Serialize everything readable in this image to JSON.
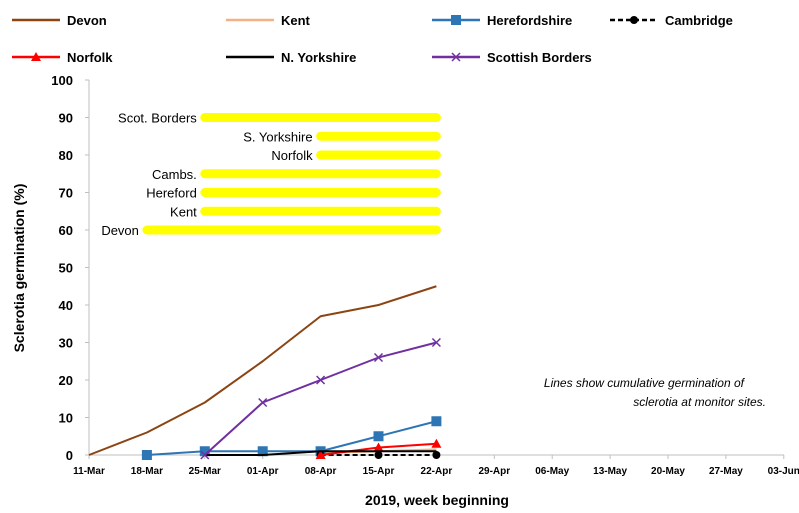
{
  "chart_data": {
    "type": "line",
    "title": "",
    "xlabel": "2019, week beginning",
    "ylabel": "Sclerotia germination (%)",
    "ylim": [
      0,
      100
    ],
    "y_ticks": [
      0,
      10,
      20,
      30,
      40,
      50,
      60,
      70,
      80,
      90,
      100
    ],
    "categories": [
      "11-Mar",
      "18-Mar",
      "25-Mar",
      "01-Apr",
      "08-Apr",
      "15-Apr",
      "22-Apr",
      "29-Apr",
      "06-May",
      "13-May",
      "20-May",
      "27-May",
      "03-Jun"
    ],
    "grid": false,
    "legend_position": "top",
    "series": [
      {
        "name": "Devon",
        "color": "#8B4513",
        "marker": "none",
        "dash": "solid",
        "values": [
          0,
          6,
          14,
          25,
          37,
          40,
          45,
          null,
          null,
          null,
          null,
          null,
          null
        ]
      },
      {
        "name": "Kent",
        "color": "#F4B183",
        "marker": "none",
        "dash": "solid",
        "values": [
          null,
          null,
          null,
          null,
          0.5,
          1,
          1.5,
          null,
          null,
          null,
          null,
          null,
          null
        ]
      },
      {
        "name": "Herefordshire",
        "color": "#2E75B6",
        "marker": "square",
        "dash": "solid",
        "values": [
          null,
          0,
          1,
          1,
          1,
          5,
          9,
          null,
          null,
          null,
          null,
          null,
          null
        ]
      },
      {
        "name": "Cambridge",
        "color": "#000000",
        "marker": "circle",
        "dash": "dashed",
        "values": [
          null,
          null,
          null,
          null,
          0,
          0,
          0,
          null,
          null,
          null,
          null,
          null,
          null
        ]
      },
      {
        "name": "Norfolk",
        "color": "#FF0000",
        "marker": "triangle",
        "dash": "solid",
        "values": [
          null,
          null,
          null,
          null,
          0,
          2,
          3,
          null,
          null,
          null,
          null,
          null,
          null
        ]
      },
      {
        "name": "N. Yorkshire",
        "color": "#000000",
        "marker": "none",
        "dash": "solid",
        "values": [
          null,
          null,
          0,
          0,
          1,
          1,
          1,
          null,
          null,
          null,
          null,
          null,
          null
        ]
      },
      {
        "name": "Scottish Borders",
        "color": "#7030A0",
        "marker": "x",
        "dash": "solid",
        "values": [
          null,
          null,
          0,
          14,
          20,
          26,
          30,
          null,
          null,
          null,
          null,
          null,
          null
        ]
      }
    ],
    "period_bars": [
      {
        "label": "Scot. Borders",
        "y": 90,
        "start": "25-Mar",
        "end": "22-Apr"
      },
      {
        "label": "S. Yorkshire",
        "y": 85,
        "start": "08-Apr",
        "end": "22-Apr"
      },
      {
        "label": "Norfolk",
        "y": 80,
        "start": "08-Apr",
        "end": "22-Apr"
      },
      {
        "label": "Cambs.",
        "y": 75,
        "start": "25-Mar",
        "end": "22-Apr"
      },
      {
        "label": "Hereford",
        "y": 70,
        "start": "25-Mar",
        "end": "22-Apr"
      },
      {
        "label": "Kent",
        "y": 65,
        "start": "25-Mar",
        "end": "22-Apr"
      },
      {
        "label": "Devon",
        "y": 60,
        "start": "18-Mar",
        "end": "22-Apr"
      }
    ],
    "period_bar_color": "#FFFF00",
    "annotation": [
      "Lines show cumulative germination of",
      "sclerotia at monitor sites."
    ]
  }
}
